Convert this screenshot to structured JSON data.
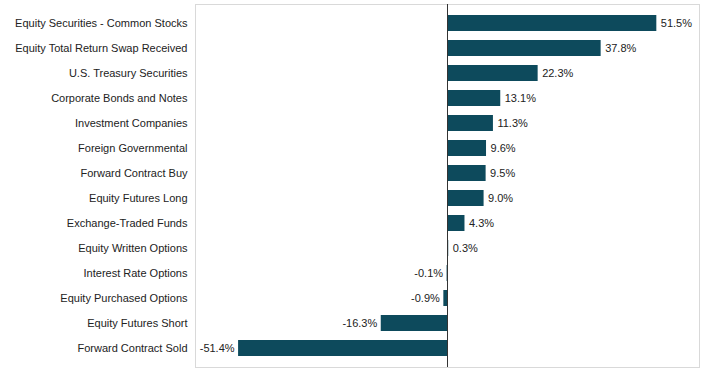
{
  "chart_data": {
    "type": "bar",
    "orientation": "horizontal",
    "categories": [
      "Equity Securities - Common Stocks",
      "Equity Total Return Swap Received",
      "U.S. Treasury Securities",
      "Corporate Bonds and Notes",
      "Investment Companies",
      "Foreign Governmental",
      "Forward Contract Buy",
      "Equity Futures Long",
      "Exchange-Traded Funds",
      "Equity Written Options",
      "Interest Rate Options",
      "Equity Purchased Options",
      "Equity Futures Short",
      "Forward Contract Sold"
    ],
    "values": [
      51.5,
      37.8,
      22.3,
      13.1,
      11.3,
      9.6,
      9.5,
      9.0,
      4.3,
      0.3,
      -0.1,
      -0.9,
      -16.3,
      -51.4
    ],
    "value_labels": [
      "51.5%",
      "37.8%",
      "22.3%",
      "13.1%",
      "11.3%",
      "9.6%",
      "9.5%",
      "9.0%",
      "4.3%",
      "0.3%",
      "-0.1%",
      "-0.9%",
      "-16.3%",
      "-51.4%"
    ],
    "color": "#0d4a5c",
    "xlim": [
      -62,
      62
    ],
    "data_labels": true,
    "tick_labels": "y",
    "grid": false
  }
}
